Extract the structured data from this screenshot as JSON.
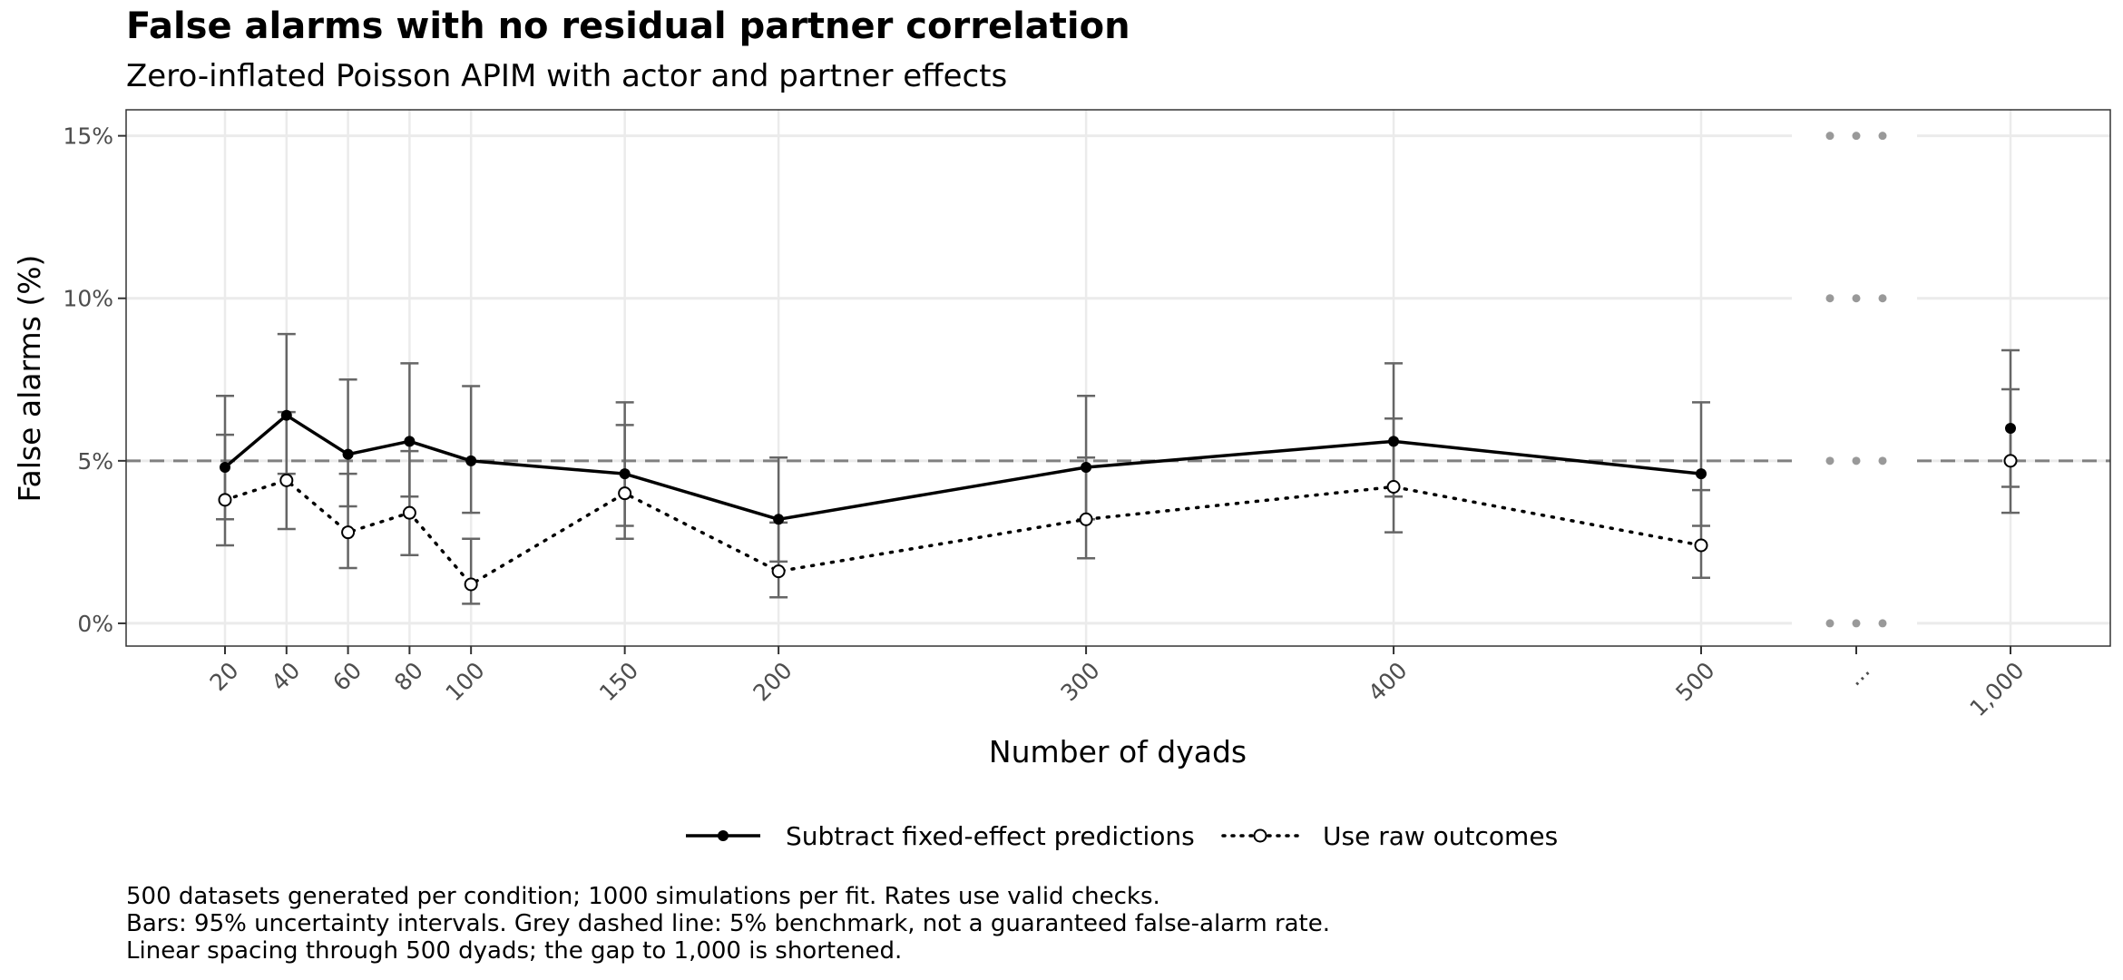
{
  "chart_data": {
    "type": "line",
    "title": "False alarms with no residual partner correlation",
    "subtitle": "Zero-inflated Poisson APIM with actor and partner effects",
    "xlabel": "Number of dyads",
    "ylabel": "False alarms (%)",
    "x": [
      20,
      40,
      60,
      80,
      100,
      150,
      200,
      300,
      400,
      500
    ],
    "x_tick_labels": [
      "20",
      "40",
      "60",
      "80",
      "100",
      "150",
      "200",
      "300",
      "400",
      "500",
      "...",
      "1,000"
    ],
    "gap_label": "...",
    "y_ticks": [
      0,
      5,
      10,
      15
    ],
    "y_tick_labels": [
      "0%",
      "5%",
      "10%",
      "15%"
    ],
    "ylim": [
      -0.7,
      15.8
    ],
    "benchmark": 5,
    "grid": true,
    "legend_position": "bottom",
    "series": [
      {
        "name": "Subtract fixed-effect predictions",
        "style": "solid",
        "marker": "filled-circle",
        "values": [
          4.8,
          6.4,
          5.2,
          5.6,
          5.0,
          4.6,
          3.2,
          4.8,
          5.6,
          4.6
        ],
        "lower": [
          3.2,
          4.6,
          3.6,
          3.9,
          3.4,
          3.0,
          1.9,
          3.2,
          3.9,
          3.0
        ],
        "upper": [
          7.0,
          8.9,
          7.5,
          8.0,
          7.3,
          6.8,
          5.1,
          7.0,
          8.0,
          6.8
        ],
        "x1000": {
          "value": 6.0,
          "lower": 4.2,
          "upper": 8.4
        }
      },
      {
        "name": "Use raw outcomes",
        "style": "dotted",
        "marker": "open-circle",
        "values": [
          3.8,
          4.4,
          2.8,
          3.4,
          1.2,
          4.0,
          1.6,
          3.2,
          4.2,
          2.4
        ],
        "lower": [
          2.4,
          2.9,
          1.7,
          2.1,
          0.6,
          2.6,
          0.8,
          2.0,
          2.8,
          1.4
        ],
        "upper": [
          5.8,
          6.5,
          4.6,
          5.3,
          2.6,
          6.1,
          3.1,
          5.1,
          6.3,
          4.1
        ],
        "x1000": {
          "value": 5.0,
          "lower": 3.4,
          "upper": 7.2
        }
      }
    ]
  },
  "caption": [
    "500 datasets generated per condition; 1000 simulations per fit. Rates use valid checks.",
    "Bars: 95% uncertainty intervals. Grey dashed line: 5% benchmark, not a guaranteed false-alarm rate.",
    "Linear spacing through 500 dyads; the gap to 1,000 is shortened."
  ],
  "colors": {
    "series": "#000000",
    "error_bar": "#666666",
    "grid": "#ebebeb",
    "benchmark": "#808080",
    "gap_dots": "#999999",
    "panel_border": "#333333"
  }
}
